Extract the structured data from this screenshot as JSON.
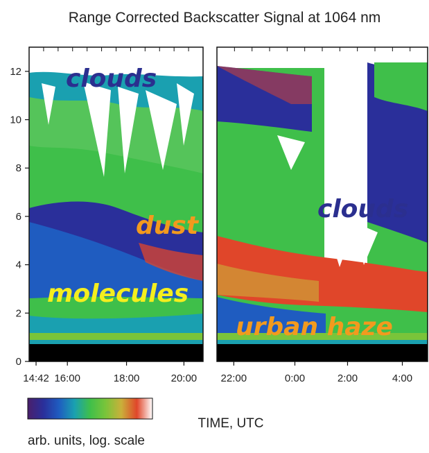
{
  "chart_data": {
    "type": "heatmap",
    "title": "Range Corrected Backscatter Signal at 1064 nm",
    "xlabel": "TIME, UTC",
    "ylabel": "",
    "ylim": [
      0,
      13
    ],
    "y_ticks": [
      "0",
      "2",
      "4",
      "6",
      "8",
      "10",
      "12"
    ],
    "panels": [
      {
        "x_ticks": [
          "14:42",
          "16:00",
          "18:00",
          "20:00"
        ]
      },
      {
        "x_ticks": [
          "22:00",
          "0:00",
          "2:00",
          "4:00"
        ]
      }
    ],
    "colorbar": {
      "label": "arb. units, log. scale",
      "colors": [
        "#4a1f6b",
        "#2a2f9a",
        "#1f5cc0",
        "#1aa0b0",
        "#3fbf4a",
        "#7ac43a",
        "#c9b03a",
        "#e0462a",
        "#ffffff"
      ]
    },
    "annotations": [
      {
        "text": "clouds",
        "color": "#2b2f8f"
      },
      {
        "text": "dust",
        "color": "#f29a1e"
      },
      {
        "text": "molecules",
        "color": "#f4ee1e"
      },
      {
        "text": "clouds",
        "color": "#2b2f8f"
      },
      {
        "text": "urban haze",
        "color": "#f29a1e"
      }
    ]
  }
}
